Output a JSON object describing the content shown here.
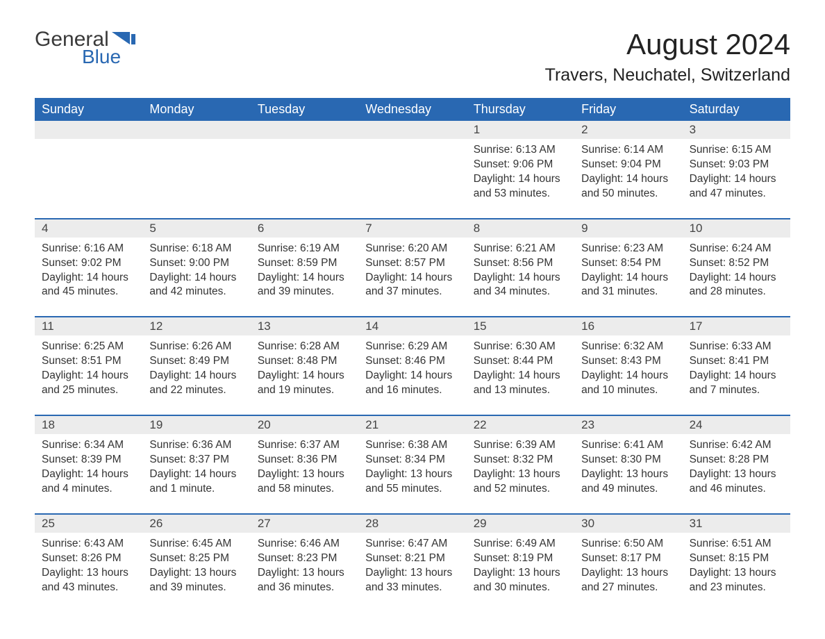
{
  "logo": {
    "text_general": "General",
    "text_blue": "Blue",
    "accent_color": "#2968b2",
    "shape_color": "#2968b2"
  },
  "title": "August 2024",
  "location": "Travers, Neuchatel, Switzerland",
  "colors": {
    "header_bg": "#2968b2",
    "header_text": "#ffffff",
    "daterow_bg": "#ececec",
    "body_text": "#333333",
    "week_border": "#2968b2",
    "page_bg": "#ffffff"
  },
  "typography": {
    "title_fontsize": 42,
    "location_fontsize": 25,
    "dayhead_fontsize": 18,
    "cell_fontsize": 15.5,
    "font_family": "Arial"
  },
  "layout": {
    "columns": 7,
    "weeks": 5,
    "start_day_index": 4
  },
  "day_headers": [
    "Sunday",
    "Monday",
    "Tuesday",
    "Wednesday",
    "Thursday",
    "Friday",
    "Saturday"
  ],
  "days": [
    {
      "n": "1",
      "sunrise": "6:13 AM",
      "sunset": "9:06 PM",
      "daylight": "14 hours and 53 minutes."
    },
    {
      "n": "2",
      "sunrise": "6:14 AM",
      "sunset": "9:04 PM",
      "daylight": "14 hours and 50 minutes."
    },
    {
      "n": "3",
      "sunrise": "6:15 AM",
      "sunset": "9:03 PM",
      "daylight": "14 hours and 47 minutes."
    },
    {
      "n": "4",
      "sunrise": "6:16 AM",
      "sunset": "9:02 PM",
      "daylight": "14 hours and 45 minutes."
    },
    {
      "n": "5",
      "sunrise": "6:18 AM",
      "sunset": "9:00 PM",
      "daylight": "14 hours and 42 minutes."
    },
    {
      "n": "6",
      "sunrise": "6:19 AM",
      "sunset": "8:59 PM",
      "daylight": "14 hours and 39 minutes."
    },
    {
      "n": "7",
      "sunrise": "6:20 AM",
      "sunset": "8:57 PM",
      "daylight": "14 hours and 37 minutes."
    },
    {
      "n": "8",
      "sunrise": "6:21 AM",
      "sunset": "8:56 PM",
      "daylight": "14 hours and 34 minutes."
    },
    {
      "n": "9",
      "sunrise": "6:23 AM",
      "sunset": "8:54 PM",
      "daylight": "14 hours and 31 minutes."
    },
    {
      "n": "10",
      "sunrise": "6:24 AM",
      "sunset": "8:52 PM",
      "daylight": "14 hours and 28 minutes."
    },
    {
      "n": "11",
      "sunrise": "6:25 AM",
      "sunset": "8:51 PM",
      "daylight": "14 hours and 25 minutes."
    },
    {
      "n": "12",
      "sunrise": "6:26 AM",
      "sunset": "8:49 PM",
      "daylight": "14 hours and 22 minutes."
    },
    {
      "n": "13",
      "sunrise": "6:28 AM",
      "sunset": "8:48 PM",
      "daylight": "14 hours and 19 minutes."
    },
    {
      "n": "14",
      "sunrise": "6:29 AM",
      "sunset": "8:46 PM",
      "daylight": "14 hours and 16 minutes."
    },
    {
      "n": "15",
      "sunrise": "6:30 AM",
      "sunset": "8:44 PM",
      "daylight": "14 hours and 13 minutes."
    },
    {
      "n": "16",
      "sunrise": "6:32 AM",
      "sunset": "8:43 PM",
      "daylight": "14 hours and 10 minutes."
    },
    {
      "n": "17",
      "sunrise": "6:33 AM",
      "sunset": "8:41 PM",
      "daylight": "14 hours and 7 minutes."
    },
    {
      "n": "18",
      "sunrise": "6:34 AM",
      "sunset": "8:39 PM",
      "daylight": "14 hours and 4 minutes."
    },
    {
      "n": "19",
      "sunrise": "6:36 AM",
      "sunset": "8:37 PM",
      "daylight": "14 hours and 1 minute."
    },
    {
      "n": "20",
      "sunrise": "6:37 AM",
      "sunset": "8:36 PM",
      "daylight": "13 hours and 58 minutes."
    },
    {
      "n": "21",
      "sunrise": "6:38 AM",
      "sunset": "8:34 PM",
      "daylight": "13 hours and 55 minutes."
    },
    {
      "n": "22",
      "sunrise": "6:39 AM",
      "sunset": "8:32 PM",
      "daylight": "13 hours and 52 minutes."
    },
    {
      "n": "23",
      "sunrise": "6:41 AM",
      "sunset": "8:30 PM",
      "daylight": "13 hours and 49 minutes."
    },
    {
      "n": "24",
      "sunrise": "6:42 AM",
      "sunset": "8:28 PM",
      "daylight": "13 hours and 46 minutes."
    },
    {
      "n": "25",
      "sunrise": "6:43 AM",
      "sunset": "8:26 PM",
      "daylight": "13 hours and 43 minutes."
    },
    {
      "n": "26",
      "sunrise": "6:45 AM",
      "sunset": "8:25 PM",
      "daylight": "13 hours and 39 minutes."
    },
    {
      "n": "27",
      "sunrise": "6:46 AM",
      "sunset": "8:23 PM",
      "daylight": "13 hours and 36 minutes."
    },
    {
      "n": "28",
      "sunrise": "6:47 AM",
      "sunset": "8:21 PM",
      "daylight": "13 hours and 33 minutes."
    },
    {
      "n": "29",
      "sunrise": "6:49 AM",
      "sunset": "8:19 PM",
      "daylight": "13 hours and 30 minutes."
    },
    {
      "n": "30",
      "sunrise": "6:50 AM",
      "sunset": "8:17 PM",
      "daylight": "13 hours and 27 minutes."
    },
    {
      "n": "31",
      "sunrise": "6:51 AM",
      "sunset": "8:15 PM",
      "daylight": "13 hours and 23 minutes."
    }
  ],
  "labels": {
    "sunrise_prefix": "Sunrise: ",
    "sunset_prefix": "Sunset: ",
    "daylight_prefix": "Daylight: "
  }
}
